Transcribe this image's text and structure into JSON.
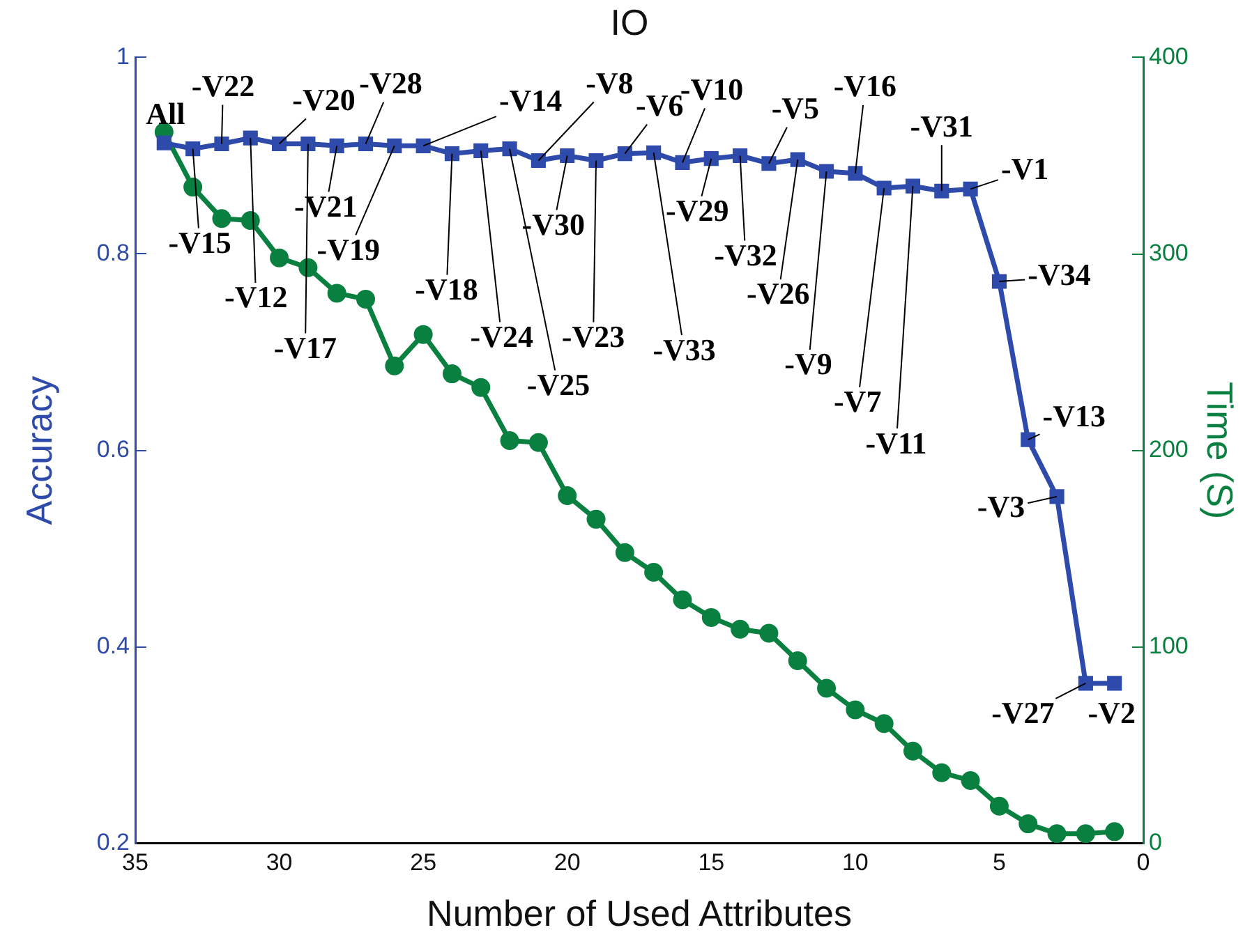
{
  "chart_data": {
    "type": "line",
    "title": "IO",
    "xlabel": "Number of Used Attributes",
    "ylabel": "Accuracy",
    "y2label": "Time (S)",
    "x": [
      34,
      33,
      32,
      31,
      30,
      29,
      28,
      27,
      26,
      25,
      24,
      23,
      22,
      21,
      20,
      19,
      18,
      17,
      16,
      15,
      14,
      13,
      12,
      11,
      10,
      9,
      8,
      7,
      6,
      5,
      4,
      3,
      2,
      1
    ],
    "series": [
      {
        "color": "#2e4bab",
        "marker": "square",
        "values": [
          0.913,
          0.907,
          0.912,
          0.918,
          0.912,
          0.912,
          0.91,
          0.912,
          0.91,
          0.91,
          0.902,
          0.905,
          0.907,
          0.895,
          0.9,
          0.895,
          0.902,
          0.903,
          0.893,
          0.897,
          0.9,
          0.892,
          0.896,
          0.884,
          0.882,
          0.867,
          0.869,
          0.864,
          0.866,
          0.772,
          0.611,
          0.553,
          0.363,
          0.363
        ]
      },
      {
        "color": "#0a8040",
        "marker": "circle",
        "axis": "y2",
        "values": [
          362,
          334,
          318,
          317,
          298,
          293,
          280,
          277,
          243,
          259,
          239,
          232,
          205,
          204,
          177,
          165,
          148,
          138,
          124,
          115,
          109,
          107,
          93,
          79,
          68,
          61,
          47,
          36,
          32,
          19,
          10,
          5,
          5,
          6
        ]
      }
    ],
    "xlim": [
      35,
      0
    ],
    "xticks": [
      35,
      30,
      25,
      20,
      15,
      10,
      5,
      0
    ],
    "ylim": [
      0.2,
      1
    ],
    "yticks": [
      0.2,
      0.4,
      0.6,
      0.8,
      1
    ],
    "y2lim": [
      0,
      400
    ],
    "y2ticks": [
      0,
      100,
      200,
      300,
      400
    ],
    "grid": false,
    "legend": false,
    "line_style": "solid",
    "annotations": [
      {
        "text": "All",
        "x": 34,
        "y": 0.913
      },
      {
        "text": "-V15",
        "x": 33,
        "y": 0.907
      },
      {
        "text": "-V22",
        "x": 32,
        "y": 0.912
      },
      {
        "text": "-V12",
        "x": 31,
        "y": 0.918
      },
      {
        "text": "-V20",
        "x": 30,
        "y": 0.912
      },
      {
        "text": "-V17",
        "x": 29,
        "y": 0.912
      },
      {
        "text": "-V21",
        "x": 28,
        "y": 0.91
      },
      {
        "text": "-V28",
        "x": 27,
        "y": 0.912
      },
      {
        "text": "-V19",
        "x": 26,
        "y": 0.91
      },
      {
        "text": "-V14",
        "x": 25,
        "y": 0.91
      },
      {
        "text": "-V18",
        "x": 24,
        "y": 0.902
      },
      {
        "text": "-V24",
        "x": 23,
        "y": 0.905
      },
      {
        "text": "-V25",
        "x": 22,
        "y": 0.907
      },
      {
        "text": "-V8",
        "x": 21,
        "y": 0.895
      },
      {
        "text": "-V30",
        "x": 20,
        "y": 0.9
      },
      {
        "text": "-V23",
        "x": 19,
        "y": 0.895
      },
      {
        "text": "-V6",
        "x": 18,
        "y": 0.902
      },
      {
        "text": "-V33",
        "x": 17,
        "y": 0.903
      },
      {
        "text": "-V10",
        "x": 16,
        "y": 0.893
      },
      {
        "text": "-V29",
        "x": 15,
        "y": 0.897
      },
      {
        "text": "-V32",
        "x": 14,
        "y": 0.9
      },
      {
        "text": "-V5",
        "x": 13,
        "y": 0.892
      },
      {
        "text": "-V26",
        "x": 12,
        "y": 0.896
      },
      {
        "text": "-V9",
        "x": 11,
        "y": 0.884
      },
      {
        "text": "-V16",
        "x": 10,
        "y": 0.882
      },
      {
        "text": "-V7",
        "x": 9,
        "y": 0.867
      },
      {
        "text": "-V11",
        "x": 8,
        "y": 0.869
      },
      {
        "text": "-V31",
        "x": 7,
        "y": 0.864
      },
      {
        "text": "-V1",
        "x": 6,
        "y": 0.866
      },
      {
        "text": "-V34",
        "x": 5,
        "y": 0.772
      },
      {
        "text": "-V13",
        "x": 4,
        "y": 0.611
      },
      {
        "text": "-V3",
        "x": 3,
        "y": 0.553
      },
      {
        "text": "-V27",
        "x": 2,
        "y": 0.363
      },
      {
        "text": "-V2",
        "x": 1,
        "y": 0.363
      }
    ]
  }
}
